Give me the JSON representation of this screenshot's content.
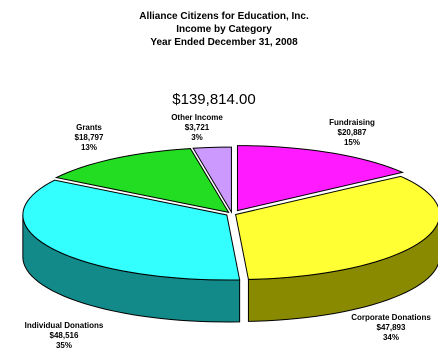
{
  "chart_data": {
    "type": "pie",
    "style": "3d-exploded",
    "title_lines": [
      "Alliance Citizens for Education, Inc.",
      "Income by Category",
      "Year Ended December 31, 2008"
    ],
    "total_label": "$139,814.00",
    "slices": [
      {
        "name": "Fundraising",
        "amount": "$20,887",
        "percent": "15%",
        "share": 0.15,
        "color": "#ff1aff",
        "side_color": "#a010a0"
      },
      {
        "name": "Corporate Donations",
        "amount": "$47,893",
        "percent": "34%",
        "share": 0.34,
        "color": "#ffff33",
        "side_color": "#8a8a00"
      },
      {
        "name": "Individual Donations",
        "amount": "$48,516",
        "percent": "35%",
        "share": 0.35,
        "color": "#33ffff",
        "side_color": "#138a8a"
      },
      {
        "name": "Grants",
        "amount": "$18,797",
        "percent": "13%",
        "share": 0.13,
        "color": "#22dd22",
        "side_color": "#117711"
      },
      {
        "name": "Other Income",
        "amount": "$3,721",
        "percent": "3%",
        "share": 0.03,
        "color": "#cc99ff",
        "side_color": "#7755aa"
      }
    ],
    "legend": "none",
    "outline_color": "#000000"
  }
}
